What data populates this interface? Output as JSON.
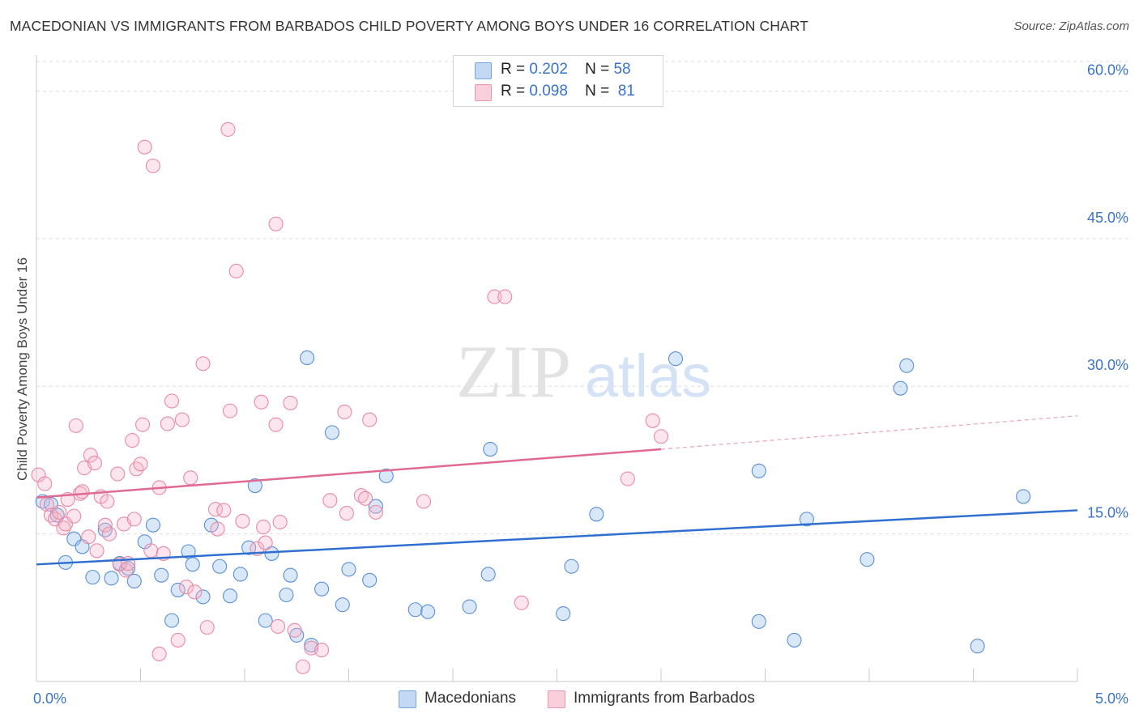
{
  "title": "MACEDONIAN VS IMMIGRANTS FROM BARBADOS CHILD POVERTY AMONG BOYS UNDER 16 CORRELATION CHART",
  "source": "Source: ZipAtlas.com",
  "watermark": {
    "zip": "ZIP",
    "atlas": "atlas"
  },
  "legend_top": {
    "rows": [
      {
        "r_label": "R =",
        "r_value": "0.202",
        "n_label": "N =",
        "n_value": "58",
        "color": "#a8c8f0"
      },
      {
        "r_label": "R =",
        "r_value": "0.098",
        "n_label": "N =",
        "n_value": "81",
        "color": "#f6b8cb"
      }
    ]
  },
  "legend_bottom": [
    {
      "label": "Macedonians",
      "color": "#a8c8f0"
    },
    {
      "label": "Immigrants from Barbados",
      "color": "#f6b8cb"
    }
  ],
  "colors": {
    "blue_fill": "rgba(156,194,238,0.38)",
    "blue_stroke": "#5b8fd6",
    "blue_line": "#2f6fd0",
    "pink_fill": "rgba(246,180,200,0.35)",
    "pink_stroke": "#e88aa7",
    "pink_line": "#e06a93",
    "tick_label": "#3a73c8",
    "grid": "#dcdcdc"
  },
  "chart_data": {
    "type": "scatter",
    "title": "MACEDONIAN VS IMMIGRANTS FROM BARBADOS CHILD POVERTY AMONG BOYS UNDER 16 CORRELATION CHART",
    "xlabel": "",
    "ylabel": "Child Poverty Among Boys Under 16",
    "xlim": [
      0,
      5.0
    ],
    "ylim": [
      0,
      63
    ],
    "x_tick_labels": [
      {
        "value": 0,
        "label": "0.0%"
      },
      {
        "value": 5.0,
        "label": "5.0%"
      }
    ],
    "y_ticks": [
      {
        "value": 15,
        "label": "15.0%"
      },
      {
        "value": 30,
        "label": "30.0%"
      },
      {
        "value": 45,
        "label": "45.0%"
      },
      {
        "value": 60,
        "label": "60.0%"
      }
    ],
    "grid": true,
    "series": [
      {
        "name": "Macedonians",
        "color": "#a8c8f0",
        "trend": {
          "x": [
            0,
            5.0
          ],
          "y": [
            11.9,
            17.4
          ]
        },
        "points": [
          [
            0.03,
            18.3
          ],
          [
            0.07,
            18.0
          ],
          [
            0.1,
            16.9
          ],
          [
            0.14,
            12.1
          ],
          [
            0.18,
            14.5
          ],
          [
            0.22,
            13.7
          ],
          [
            0.27,
            10.6
          ],
          [
            0.33,
            15.4
          ],
          [
            0.36,
            10.5
          ],
          [
            0.4,
            12.0
          ],
          [
            0.44,
            11.5
          ],
          [
            0.47,
            10.2
          ],
          [
            0.52,
            14.2
          ],
          [
            0.56,
            15.9
          ],
          [
            0.6,
            10.8
          ],
          [
            0.65,
            6.2
          ],
          [
            0.68,
            9.3
          ],
          [
            0.73,
            13.2
          ],
          [
            0.75,
            11.9
          ],
          [
            0.8,
            8.6
          ],
          [
            0.84,
            15.9
          ],
          [
            0.88,
            11.7
          ],
          [
            0.93,
            8.7
          ],
          [
            0.98,
            10.9
          ],
          [
            1.02,
            13.6
          ],
          [
            1.05,
            19.9
          ],
          [
            1.1,
            6.2
          ],
          [
            1.13,
            13.0
          ],
          [
            1.2,
            8.8
          ],
          [
            1.22,
            10.8
          ],
          [
            1.25,
            4.7
          ],
          [
            1.3,
            32.9
          ],
          [
            1.32,
            3.7
          ],
          [
            1.37,
            9.4
          ],
          [
            1.42,
            25.3
          ],
          [
            1.47,
            7.8
          ],
          [
            1.5,
            11.4
          ],
          [
            1.6,
            10.3
          ],
          [
            1.63,
            17.8
          ],
          [
            1.68,
            20.9
          ],
          [
            1.82,
            7.3
          ],
          [
            1.88,
            7.1
          ],
          [
            2.08,
            7.6
          ],
          [
            2.17,
            10.9
          ],
          [
            2.18,
            23.6
          ],
          [
            2.53,
            6.9
          ],
          [
            2.57,
            11.7
          ],
          [
            2.69,
            17.0
          ],
          [
            3.07,
            32.8
          ],
          [
            3.47,
            21.4
          ],
          [
            3.47,
            6.1
          ],
          [
            3.64,
            4.2
          ],
          [
            3.7,
            16.5
          ],
          [
            3.99,
            12.4
          ],
          [
            4.15,
            29.8
          ],
          [
            4.18,
            32.1
          ],
          [
            4.52,
            3.6
          ],
          [
            4.74,
            18.8
          ]
        ]
      },
      {
        "name": "Immigrants from Barbados",
        "color": "#f6b8cb",
        "trend": {
          "x": [
            0,
            3.0
          ],
          "y": [
            18.7,
            23.6
          ]
        },
        "trend_dashed": {
          "x": [
            3.0,
            5.0
          ],
          "y": [
            23.6,
            27.0
          ]
        },
        "points": [
          [
            0.01,
            21.0
          ],
          [
            0.04,
            20.1
          ],
          [
            0.05,
            18.0
          ],
          [
            0.07,
            16.9
          ],
          [
            0.09,
            16.5
          ],
          [
            0.11,
            17.2
          ],
          [
            0.13,
            15.6
          ],
          [
            0.14,
            16.0
          ],
          [
            0.15,
            18.5
          ],
          [
            0.18,
            16.8
          ],
          [
            0.19,
            26.0
          ],
          [
            0.21,
            19.1
          ],
          [
            0.22,
            19.3
          ],
          [
            0.23,
            21.7
          ],
          [
            0.25,
            14.7
          ],
          [
            0.26,
            23.0
          ],
          [
            0.28,
            22.2
          ],
          [
            0.29,
            13.3
          ],
          [
            0.31,
            18.8
          ],
          [
            0.33,
            15.9
          ],
          [
            0.34,
            18.3
          ],
          [
            0.35,
            15.0
          ],
          [
            0.39,
            21.1
          ],
          [
            0.4,
            11.9
          ],
          [
            0.42,
            16.0
          ],
          [
            0.43,
            11.3
          ],
          [
            0.44,
            12.0
          ],
          [
            0.46,
            24.5
          ],
          [
            0.47,
            16.5
          ],
          [
            0.48,
            21.6
          ],
          [
            0.5,
            22.1
          ],
          [
            0.51,
            26.1
          ],
          [
            0.52,
            54.3
          ],
          [
            0.55,
            13.3
          ],
          [
            0.56,
            52.4
          ],
          [
            0.59,
            2.8
          ],
          [
            0.59,
            19.7
          ],
          [
            0.61,
            13.0
          ],
          [
            0.63,
            26.2
          ],
          [
            0.65,
            28.5
          ],
          [
            0.68,
            4.2
          ],
          [
            0.7,
            26.6
          ],
          [
            0.72,
            9.6
          ],
          [
            0.74,
            20.7
          ],
          [
            0.76,
            9.1
          ],
          [
            0.8,
            32.3
          ],
          [
            0.82,
            5.5
          ],
          [
            0.86,
            17.5
          ],
          [
            0.87,
            15.5
          ],
          [
            0.9,
            17.4
          ],
          [
            0.92,
            56.1
          ],
          [
            0.93,
            27.5
          ],
          [
            0.96,
            41.7
          ],
          [
            0.99,
            16.3
          ],
          [
            1.06,
            13.5
          ],
          [
            1.08,
            28.4
          ],
          [
            1.09,
            15.7
          ],
          [
            1.1,
            14.1
          ],
          [
            1.15,
            26.1
          ],
          [
            1.16,
            5.6
          ],
          [
            1.15,
            46.5
          ],
          [
            1.17,
            16.2
          ],
          [
            1.22,
            28.3
          ],
          [
            1.24,
            5.2
          ],
          [
            1.28,
            1.5
          ],
          [
            1.32,
            3.4
          ],
          [
            1.37,
            3.2
          ],
          [
            1.41,
            18.4
          ],
          [
            1.48,
            27.4
          ],
          [
            1.49,
            17.1
          ],
          [
            1.56,
            18.9
          ],
          [
            1.58,
            18.6
          ],
          [
            1.6,
            26.6
          ],
          [
            1.63,
            17.2
          ],
          [
            1.86,
            18.3
          ],
          [
            2.2,
            39.1
          ],
          [
            2.25,
            39.1
          ],
          [
            2.33,
            8.0
          ],
          [
            2.84,
            20.6
          ],
          [
            2.96,
            26.5
          ],
          [
            3.0,
            24.9
          ]
        ]
      }
    ]
  }
}
